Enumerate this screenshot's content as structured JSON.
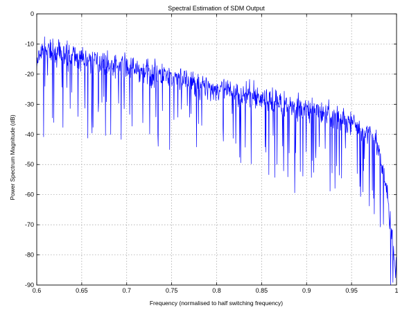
{
  "chart_data": {
    "type": "line",
    "title": "Spectral Estimation of SDM Output",
    "xlabel": "Frequency (normalised to half switching frequency)",
    "ylabel": "Power Spectrum Magnitude (dB)",
    "xlim": [
      0.6,
      1.0
    ],
    "ylim": [
      -90,
      0
    ],
    "xticks": [
      0.6,
      0.65,
      0.7,
      0.75,
      0.8,
      0.85,
      0.9,
      0.95,
      1.0
    ],
    "xtick_labels": [
      "0.6",
      "0.65",
      "0.7",
      "0.75",
      "0.8",
      "0.85",
      "0.9",
      "0.95",
      "1"
    ],
    "yticks": [
      0,
      -10,
      -20,
      -30,
      -40,
      -50,
      -60,
      -70,
      -80,
      -90
    ],
    "ytick_labels": [
      "0",
      "-10",
      "-20",
      "-30",
      "-40",
      "-50",
      "-60",
      "-70",
      "-80",
      "-90"
    ],
    "grid": true,
    "line_color": "#0000ff",
    "envelope": {
      "x": [
        0.6,
        0.605,
        0.61,
        0.62,
        0.65,
        0.7,
        0.75,
        0.8,
        0.85,
        0.9,
        0.93,
        0.95,
        0.97,
        0.98,
        0.985,
        0.99,
        0.993,
        0.996,
        1.0
      ],
      "y": [
        -17,
        -13,
        -12,
        -13,
        -15,
        -18,
        -21,
        -25,
        -28,
        -32,
        -34,
        -36,
        -40,
        -45,
        -52,
        -60,
        -70,
        -78,
        -87
      ]
    },
    "noise": {
      "count": 1100,
      "jitter_db": 4,
      "spike_probability": 0.09,
      "spike_depth_db": [
        8,
        25
      ],
      "seed": 7
    }
  }
}
